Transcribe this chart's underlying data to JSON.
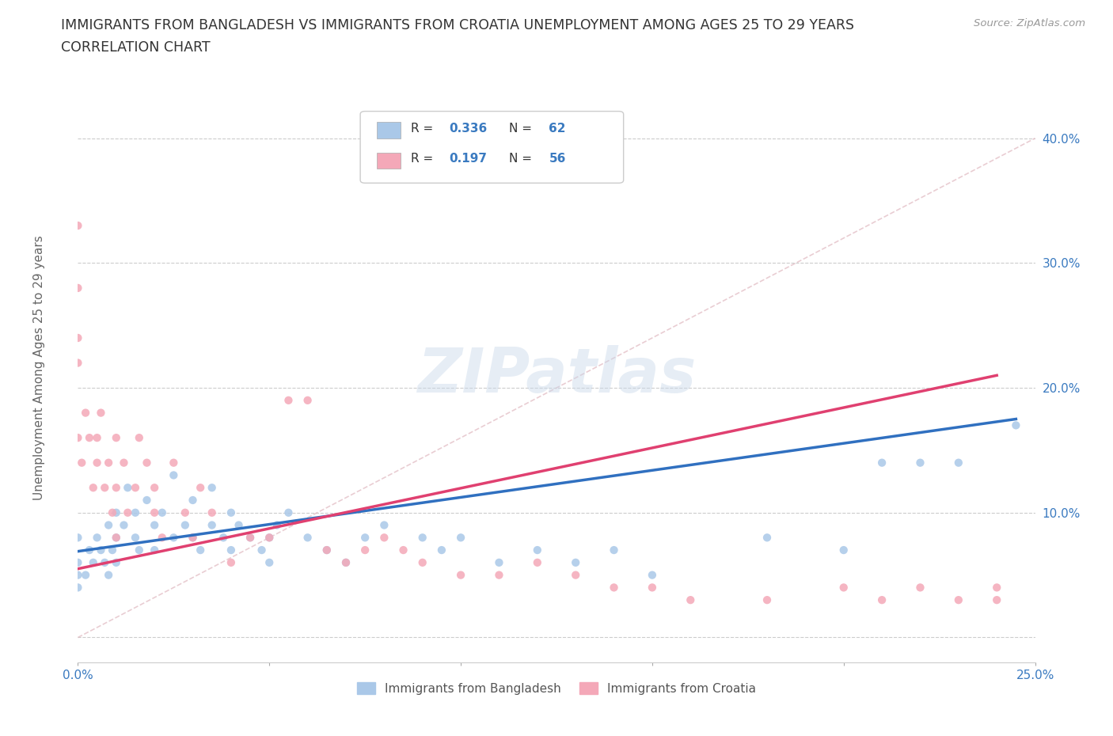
{
  "title_line1": "IMMIGRANTS FROM BANGLADESH VS IMMIGRANTS FROM CROATIA UNEMPLOYMENT AMONG AGES 25 TO 29 YEARS",
  "title_line2": "CORRELATION CHART",
  "source_text": "Source: ZipAtlas.com",
  "ylabel": "Unemployment Among Ages 25 to 29 years",
  "xlim": [
    0.0,
    0.25
  ],
  "ylim": [
    -0.02,
    0.44
  ],
  "x_ticks": [
    0.0,
    0.05,
    0.1,
    0.15,
    0.2,
    0.25
  ],
  "x_tick_labels": [
    "0.0%",
    "",
    "",
    "",
    "",
    "25.0%"
  ],
  "y_ticks": [
    0.0,
    0.1,
    0.2,
    0.3,
    0.4
  ],
  "y_tick_labels": [
    "",
    "10.0%",
    "20.0%",
    "30.0%",
    "40.0%"
  ],
  "scatter_color1": "#aac8e8",
  "scatter_color2": "#f4a8b8",
  "line_color1": "#3070c0",
  "line_color2": "#e04070",
  "diag_color": "#d8c8c8",
  "watermark": "ZIPatlas",
  "bangladesh_x": [
    0.0,
    0.0,
    0.0,
    0.0,
    0.002,
    0.003,
    0.004,
    0.005,
    0.006,
    0.007,
    0.008,
    0.008,
    0.009,
    0.01,
    0.01,
    0.01,
    0.012,
    0.013,
    0.015,
    0.015,
    0.016,
    0.018,
    0.02,
    0.02,
    0.022,
    0.025,
    0.025,
    0.028,
    0.03,
    0.03,
    0.032,
    0.035,
    0.035,
    0.038,
    0.04,
    0.04,
    0.042,
    0.045,
    0.048,
    0.05,
    0.05,
    0.052,
    0.055,
    0.06,
    0.065,
    0.07,
    0.075,
    0.08,
    0.09,
    0.095,
    0.1,
    0.11,
    0.12,
    0.13,
    0.14,
    0.15,
    0.18,
    0.2,
    0.21,
    0.22,
    0.23,
    0.245
  ],
  "bangladesh_y": [
    0.04,
    0.05,
    0.06,
    0.08,
    0.05,
    0.07,
    0.06,
    0.08,
    0.07,
    0.06,
    0.05,
    0.09,
    0.07,
    0.08,
    0.1,
    0.06,
    0.09,
    0.12,
    0.08,
    0.1,
    0.07,
    0.11,
    0.09,
    0.07,
    0.1,
    0.13,
    0.08,
    0.09,
    0.11,
    0.08,
    0.07,
    0.12,
    0.09,
    0.08,
    0.1,
    0.07,
    0.09,
    0.08,
    0.07,
    0.06,
    0.08,
    0.09,
    0.1,
    0.08,
    0.07,
    0.06,
    0.08,
    0.09,
    0.08,
    0.07,
    0.08,
    0.06,
    0.07,
    0.06,
    0.07,
    0.05,
    0.08,
    0.07,
    0.14,
    0.14,
    0.14,
    0.17
  ],
  "croatia_x": [
    0.0,
    0.0,
    0.0,
    0.0,
    0.0,
    0.001,
    0.002,
    0.003,
    0.004,
    0.005,
    0.005,
    0.006,
    0.007,
    0.008,
    0.009,
    0.01,
    0.01,
    0.01,
    0.012,
    0.013,
    0.015,
    0.016,
    0.018,
    0.02,
    0.02,
    0.022,
    0.025,
    0.028,
    0.03,
    0.032,
    0.035,
    0.04,
    0.045,
    0.05,
    0.055,
    0.06,
    0.065,
    0.07,
    0.075,
    0.08,
    0.085,
    0.09,
    0.1,
    0.11,
    0.12,
    0.13,
    0.14,
    0.15,
    0.16,
    0.18,
    0.2,
    0.21,
    0.22,
    0.23,
    0.24,
    0.24
  ],
  "croatia_y": [
    0.33,
    0.28,
    0.22,
    0.16,
    0.24,
    0.14,
    0.18,
    0.16,
    0.12,
    0.14,
    0.16,
    0.18,
    0.12,
    0.14,
    0.1,
    0.12,
    0.16,
    0.08,
    0.14,
    0.1,
    0.12,
    0.16,
    0.14,
    0.1,
    0.12,
    0.08,
    0.14,
    0.1,
    0.08,
    0.12,
    0.1,
    0.06,
    0.08,
    0.08,
    0.19,
    0.19,
    0.07,
    0.06,
    0.07,
    0.08,
    0.07,
    0.06,
    0.05,
    0.05,
    0.06,
    0.05,
    0.04,
    0.04,
    0.03,
    0.03,
    0.04,
    0.03,
    0.04,
    0.03,
    0.04,
    0.03
  ],
  "trendline1_x": [
    0.0,
    0.245
  ],
  "trendline1_y": [
    0.069,
    0.175
  ],
  "trendline2_x": [
    0.0,
    0.24
  ],
  "trendline2_y": [
    0.055,
    0.21
  ]
}
